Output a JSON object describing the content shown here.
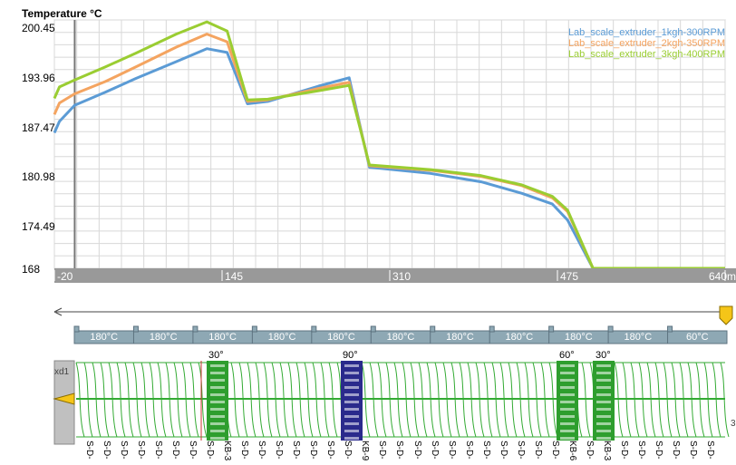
{
  "chart_data": {
    "type": "line",
    "ylabel": "Temperature °C",
    "y_ticks": [
      "200.45",
      "193.96",
      "187.47",
      "180.98",
      "174.49",
      "168"
    ],
    "ylim": [
      168,
      200.45
    ],
    "x_ticks": [
      "-20",
      "145",
      "310",
      "475",
      "640mm"
    ],
    "x_tick_values": [
      -20,
      145,
      310,
      475,
      640
    ],
    "xlim": [
      -20,
      640
    ],
    "grid": true,
    "legend_position": "top-right",
    "series": [
      {
        "name": "Lab_scale_extruder_1kgh-300RPM",
        "color": "#5b9bd5",
        "x": [
          -20,
          -15,
          0,
          30,
          60,
          100,
          130,
          150,
          170,
          190,
          240,
          270,
          290,
          350,
          400,
          440,
          470,
          485,
          510,
          640
        ],
        "y": [
          185.7,
          187.2,
          189.3,
          191.0,
          192.8,
          195.0,
          196.7,
          196.2,
          189.5,
          189.8,
          191.8,
          192.9,
          181.2,
          180.4,
          179.3,
          177.8,
          176.4,
          174.3,
          168.0,
          168.0
        ]
      },
      {
        "name": "Lab_scale_extruder_2kgh-350RPM",
        "color": "#f4a460",
        "x": [
          -20,
          -15,
          0,
          30,
          60,
          100,
          130,
          150,
          170,
          190,
          240,
          270,
          290,
          350,
          400,
          440,
          470,
          485,
          510,
          640
        ],
        "y": [
          188.1,
          189.6,
          190.8,
          192.4,
          194.3,
          196.9,
          198.6,
          197.6,
          189.8,
          190.0,
          191.5,
          192.3,
          181.4,
          180.8,
          180.0,
          178.8,
          177.2,
          175.4,
          168.0,
          168.0
        ]
      },
      {
        "name": "Lab_scale_extruder_3kgh-400RPM",
        "color": "#9acd32",
        "x": [
          -20,
          -15,
          0,
          30,
          60,
          100,
          130,
          150,
          170,
          190,
          240,
          270,
          290,
          350,
          400,
          440,
          470,
          485,
          510,
          640
        ],
        "y": [
          190.2,
          191.7,
          192.6,
          194.3,
          196.1,
          198.6,
          200.2,
          199.0,
          190.0,
          190.1,
          191.2,
          191.9,
          181.5,
          180.9,
          180.1,
          178.9,
          177.4,
          175.6,
          168.0,
          168.0
        ]
      }
    ]
  },
  "zones": [
    "180°C",
    "180°C",
    "180°C",
    "180°C",
    "180°C",
    "180°C",
    "180°C",
    "180°C",
    "180°C",
    "180°C",
    "60°C"
  ],
  "screw": {
    "barrel_label": "xd1",
    "right_label": "3",
    "angle_labels": [
      "30°",
      "90°",
      "60°",
      "30°"
    ],
    "element_labels": [
      "S-D-",
      "S-D-",
      "S-D-",
      "S-D-",
      "S-D-",
      "S-D-",
      "S-D-",
      "S-D-",
      "KB-3",
      "S-D-",
      "S-D-",
      "S-D-",
      "S-D-",
      "S-D-",
      "S-D-",
      "S-D-",
      "KB-9",
      "S-D-",
      "S-D-",
      "S-D-",
      "S-D-",
      "S-D-",
      "S-D-",
      "S-D-",
      "S-D-",
      "S-D-",
      "S-D-",
      "S-D-",
      "KB-6",
      "S-D-",
      "KB-3",
      "S-D-",
      "S-D-",
      "S-D-",
      "S-D-",
      "S-D-",
      "S-D-"
    ],
    "colors": {
      "kneading_green": "#2e9e2e",
      "kneading_blue": "#2a2a8c",
      "flight": "#33aa33",
      "barrel": "#c0c0c0",
      "marker": "#f5c518"
    }
  }
}
